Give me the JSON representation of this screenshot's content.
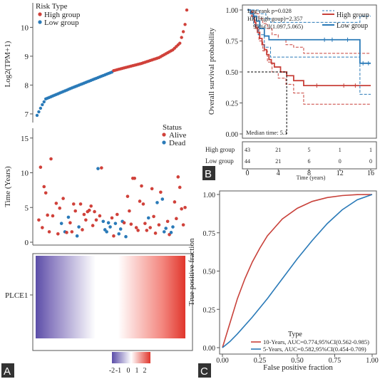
{
  "panels": [
    {
      "id": "A",
      "label": "A"
    },
    {
      "id": "B",
      "label": "B"
    },
    {
      "id": "C",
      "label": "C"
    }
  ],
  "chart_data": [
    {
      "id": "risk-score",
      "type": "scatter",
      "title": "",
      "ylabel": "Log2(TPM+1)",
      "ylim": [
        6.8,
        10.8
      ],
      "yticks": [
        7,
        8,
        9,
        10
      ],
      "legend": {
        "title": "Risk Type",
        "position": "top-left",
        "entries": [
          "High group",
          "Low group"
        ]
      },
      "colors": {
        "High group": "#d0413a",
        "Low group": "#2a7ab8"
      },
      "x_count": 87,
      "low_count": 44,
      "key_points": [
        [
          0,
          6.95
        ],
        [
          3,
          7.32
        ],
        [
          5,
          7.52
        ],
        [
          20,
          7.9
        ],
        [
          43,
          8.45
        ],
        [
          44,
          8.5
        ],
        [
          60,
          8.75
        ],
        [
          70,
          8.95
        ],
        [
          78,
          9.22
        ],
        [
          82,
          9.45
        ],
        [
          84,
          9.85
        ],
        [
          85,
          10.1
        ],
        [
          86,
          10.6
        ]
      ]
    },
    {
      "id": "survival-status",
      "type": "scatter",
      "title": "",
      "ylabel": "Time (Years)",
      "ylim": [
        0,
        16
      ],
      "yticks": [
        0,
        5,
        10,
        15
      ],
      "legend": {
        "title": "Status",
        "position": "top-right",
        "entries": [
          "Alive",
          "Dead"
        ]
      },
      "colors": {
        "Alive": "#d0413a",
        "Dead": "#2a7ab8"
      },
      "points": [
        [
          1,
          3.2,
          "Alive"
        ],
        [
          2,
          10.8,
          "Alive"
        ],
        [
          3,
          2.1,
          "Alive"
        ],
        [
          4,
          8,
          "Alive"
        ],
        [
          5,
          7.1,
          "Alive"
        ],
        [
          6,
          3.9,
          "Alive"
        ],
        [
          7,
          1.5,
          "Alive"
        ],
        [
          8,
          12,
          "Alive"
        ],
        [
          9,
          3.8,
          "Alive"
        ],
        [
          11,
          5.6,
          "Alive"
        ],
        [
          12,
          1.2,
          "Alive"
        ],
        [
          13,
          4.9,
          "Alive"
        ],
        [
          14,
          2.7,
          "Dead"
        ],
        [
          15,
          6.3,
          "Alive"
        ],
        [
          16,
          1.5,
          "Dead"
        ],
        [
          17,
          1.4,
          "Alive"
        ],
        [
          18,
          3.6,
          "Dead"
        ],
        [
          19,
          2.8,
          "Alive"
        ],
        [
          20,
          1.5,
          "Alive"
        ],
        [
          21,
          5.5,
          "Alive"
        ],
        [
          22,
          4.5,
          "Alive"
        ],
        [
          23,
          0.9,
          "Dead"
        ],
        [
          24,
          2.2,
          "Dead"
        ],
        [
          25,
          5.5,
          "Alive"
        ],
        [
          26,
          1.8,
          "Alive"
        ],
        [
          27,
          4,
          "Alive"
        ],
        [
          28,
          3.2,
          "Alive"
        ],
        [
          29,
          4.4,
          "Alive"
        ],
        [
          30,
          4.6,
          "Alive"
        ],
        [
          31,
          5.2,
          "Alive"
        ],
        [
          32,
          2.4,
          "Alive"
        ],
        [
          33,
          4.4,
          "Alive"
        ],
        [
          34,
          3.2,
          "Alive"
        ],
        [
          35,
          10.6,
          "Dead"
        ],
        [
          36,
          3.8,
          "Alive"
        ],
        [
          37,
          10.7,
          "Alive"
        ],
        [
          38,
          3,
          "Dead"
        ],
        [
          39,
          1.8,
          "Dead"
        ],
        [
          40,
          1.5,
          "Dead"
        ],
        [
          41,
          2.8,
          "Dead"
        ],
        [
          42,
          2.2,
          "Dead"
        ],
        [
          43,
          3.5,
          "Alive"
        ],
        [
          44,
          0.9,
          "Alive"
        ],
        [
          45,
          2.7,
          "Dead"
        ],
        [
          46,
          4,
          "Alive"
        ],
        [
          47,
          1.2,
          "Dead"
        ],
        [
          48,
          1.9,
          "Dead"
        ],
        [
          49,
          3,
          "Dead"
        ],
        [
          50,
          2.8,
          "Alive"
        ],
        [
          51,
          0.8,
          "Dead"
        ],
        [
          52,
          6.6,
          "Alive"
        ],
        [
          53,
          4.5,
          "Alive"
        ],
        [
          54,
          2.6,
          "Alive"
        ],
        [
          55,
          9.2,
          "Alive"
        ],
        [
          56,
          9.2,
          "Alive"
        ],
        [
          57,
          2.1,
          "Alive"
        ],
        [
          58,
          1.7,
          "Alive"
        ],
        [
          59,
          5.9,
          "Alive"
        ],
        [
          60,
          8.1,
          "Alive"
        ],
        [
          61,
          5.5,
          "Alive"
        ],
        [
          62,
          2.7,
          "Alive"
        ],
        [
          63,
          1.7,
          "Alive"
        ],
        [
          64,
          3.5,
          "Dead"
        ],
        [
          65,
          2.1,
          "Alive"
        ],
        [
          66,
          7.7,
          "Alive"
        ],
        [
          67,
          3.7,
          "Alive"
        ],
        [
          68,
          1.3,
          "Alive"
        ],
        [
          69,
          5.7,
          "Dead"
        ],
        [
          70,
          2.5,
          "Alive"
        ],
        [
          71,
          7.2,
          "Alive"
        ],
        [
          72,
          6.2,
          "Dead"
        ],
        [
          73,
          1.5,
          "Dead"
        ],
        [
          74,
          2,
          "Dead"
        ],
        [
          75,
          3,
          "Alive"
        ],
        [
          76,
          1.1,
          "Alive"
        ],
        [
          77,
          1.4,
          "Dead"
        ],
        [
          78,
          2.2,
          "Dead"
        ],
        [
          79,
          5.8,
          "Alive"
        ],
        [
          80,
          3.4,
          "Alive"
        ],
        [
          81,
          9.4,
          "Alive"
        ],
        [
          82,
          7.9,
          "Alive"
        ],
        [
          83,
          4.8,
          "Alive"
        ],
        [
          84,
          2.5,
          "Alive"
        ],
        [
          85,
          5,
          "Alive"
        ]
      ]
    },
    {
      "id": "expression-heatmap",
      "type": "heatmap",
      "row_label": "PLCE1",
      "legend_ticks": [
        "-2",
        "-1",
        "0",
        "1",
        "2"
      ],
      "value_range": [
        -2,
        2
      ],
      "colors": {
        "low": "#5b4da8",
        "mid": "#ffffff",
        "high": "#e0362c"
      }
    },
    {
      "id": "kaplan-meier",
      "type": "line",
      "title": "",
      "xlabel": "Time (years)",
      "ylabel": "Overall survival probability",
      "xlim": [
        0,
        16
      ],
      "ylim": [
        0,
        1
      ],
      "xticks": [
        0,
        4,
        8,
        12,
        16
      ],
      "yticks": [
        "0.00",
        "0.25",
        "0.50",
        "0.75",
        "1.00"
      ],
      "annotations": {
        "logrank": "Log-rank p=0.028",
        "hr": "HR(High goup)=2.357",
        "ci": "95%CI(1.097,5.065)",
        "median": "Median time: 5.1"
      },
      "legend_position": "top-right",
      "median_time": 5.1,
      "series": [
        {
          "name": "High group",
          "color": "#c8413a",
          "steps": [
            [
              0,
              1.0
            ],
            [
              0.4,
              0.98
            ],
            [
              0.7,
              0.95
            ],
            [
              0.9,
              0.9
            ],
            [
              1.1,
              0.86
            ],
            [
              1.3,
              0.82
            ],
            [
              1.6,
              0.77
            ],
            [
              1.9,
              0.72
            ],
            [
              2.2,
              0.68
            ],
            [
              2.5,
              0.64
            ],
            [
              2.8,
              0.6
            ],
            [
              3.1,
              0.57
            ],
            [
              3.5,
              0.54
            ],
            [
              4.3,
              0.5
            ],
            [
              5.1,
              0.47
            ],
            [
              6.0,
              0.43
            ],
            [
              7.3,
              0.39
            ],
            [
              16,
              0.39
            ]
          ],
          "ci_upper": [
            [
              0,
              1.0
            ],
            [
              0.5,
              0.99
            ],
            [
              1,
              0.97
            ],
            [
              1.5,
              0.93
            ],
            [
              2,
              0.89
            ],
            [
              2.6,
              0.85
            ],
            [
              3.2,
              0.8
            ],
            [
              4,
              0.76
            ],
            [
              5,
              0.72
            ],
            [
              6,
              0.7
            ],
            [
              7.3,
              0.65
            ],
            [
              16,
              0.65
            ]
          ],
          "ci_lower": [
            [
              0,
              1.0
            ],
            [
              0.5,
              0.95
            ],
            [
              1,
              0.85
            ],
            [
              1.5,
              0.75
            ],
            [
              2,
              0.67
            ],
            [
              2.6,
              0.58
            ],
            [
              3.2,
              0.5
            ],
            [
              4,
              0.45
            ],
            [
              5,
              0.4
            ],
            [
              6,
              0.33
            ],
            [
              7.3,
              0.24
            ],
            [
              16,
              0.24
            ]
          ]
        },
        {
          "name": "Low group",
          "color": "#2a7ab8",
          "steps": [
            [
              0,
              1.0
            ],
            [
              0.4,
              0.97
            ],
            [
              0.8,
              0.95
            ],
            [
              1.2,
              0.91
            ],
            [
              1.6,
              0.85
            ],
            [
              2.2,
              0.79
            ],
            [
              2.8,
              0.76
            ],
            [
              14.6,
              0.76
            ],
            [
              14.6,
              0.57
            ],
            [
              16,
              0.57
            ]
          ],
          "ci_upper": [
            [
              0,
              1.0
            ],
            [
              1,
              1.0
            ],
            [
              1.6,
              0.97
            ],
            [
              2.4,
              0.93
            ],
            [
              3,
              0.9
            ],
            [
              14.6,
              0.9
            ],
            [
              14.6,
              0.95
            ],
            [
              16,
              0.95
            ]
          ],
          "ci_lower": [
            [
              0,
              1.0
            ],
            [
              0.8,
              0.88
            ],
            [
              1.4,
              0.8
            ],
            [
              2.2,
              0.7
            ],
            [
              3,
              0.62
            ],
            [
              14.6,
              0.62
            ],
            [
              14.6,
              0.32
            ],
            [
              16,
              0.32
            ]
          ]
        }
      ],
      "risk_table": {
        "rows": [
          {
            "label": "High group",
            "values": [
              "43",
              "21",
              "5",
              "1",
              "1"
            ]
          },
          {
            "label": "Low group",
            "values": [
              "44",
              "21",
              "6",
              "0",
              "0"
            ]
          }
        ]
      }
    },
    {
      "id": "roc",
      "type": "line",
      "title": "",
      "xlabel": "False positive fraction",
      "ylabel": "True positive fraction",
      "xlim": [
        0,
        1
      ],
      "ylim": [
        0,
        1
      ],
      "xticks": [
        "0.00",
        "0.25",
        "0.50",
        "0.75",
        "1.00"
      ],
      "yticks": [
        "0.00",
        "0.25",
        "0.50",
        "0.75",
        "1.00"
      ],
      "legend": {
        "title": "Type",
        "position": "bottom-right"
      },
      "series": [
        {
          "name": "10-Years, AUC=0.774,95%CI(0.562-0.985)",
          "color": "#c8413a",
          "points": [
            [
              0,
              0
            ],
            [
              0.025,
              0.08
            ],
            [
              0.05,
              0.16
            ],
            [
              0.1,
              0.32
            ],
            [
              0.15,
              0.45
            ],
            [
              0.2,
              0.56
            ],
            [
              0.25,
              0.65
            ],
            [
              0.3,
              0.73
            ],
            [
              0.4,
              0.84
            ],
            [
              0.5,
              0.91
            ],
            [
              0.6,
              0.955
            ],
            [
              0.7,
              0.98
            ],
            [
              0.8,
              0.993
            ],
            [
              0.9,
              0.999
            ],
            [
              1,
              1
            ]
          ]
        },
        {
          "name": "5-Years, AUC=0.582,95%CI(0.454-0.709)",
          "color": "#2a7ab8",
          "points": [
            [
              0,
              0
            ],
            [
              0.05,
              0.04
            ],
            [
              0.1,
              0.09
            ],
            [
              0.2,
              0.2
            ],
            [
              0.3,
              0.32
            ],
            [
              0.4,
              0.45
            ],
            [
              0.5,
              0.58
            ],
            [
              0.6,
              0.7
            ],
            [
              0.7,
              0.81
            ],
            [
              0.8,
              0.9
            ],
            [
              0.9,
              0.965
            ],
            [
              1,
              1
            ]
          ]
        }
      ]
    }
  ]
}
